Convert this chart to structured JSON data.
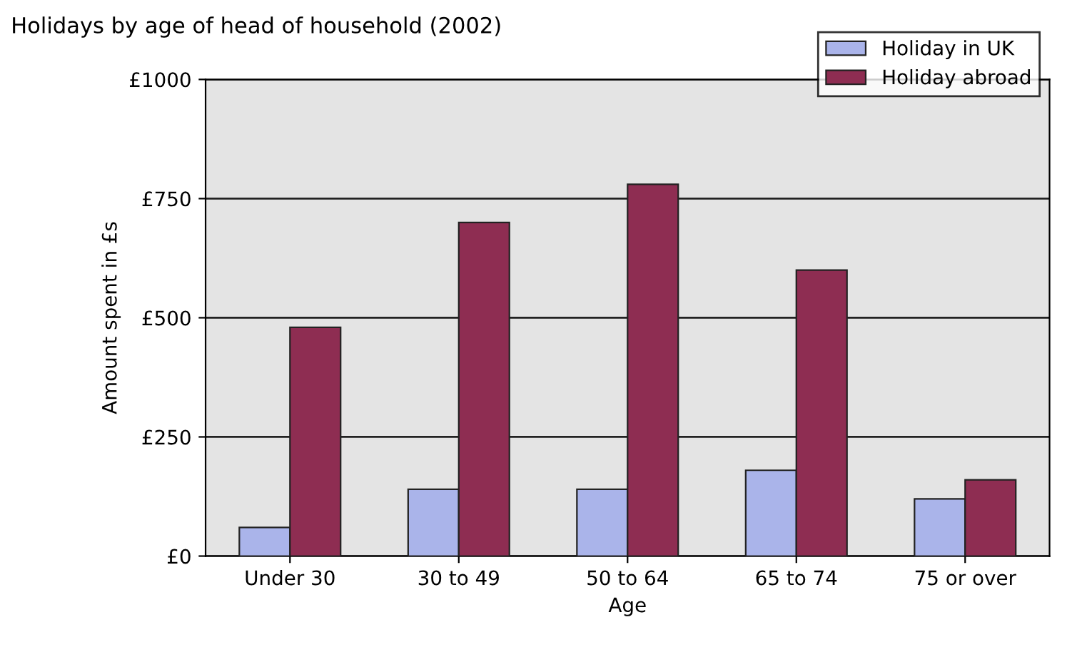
{
  "chart_data": {
    "type": "bar",
    "title": "Holidays by age of head of household (2002)",
    "xlabel": "Age",
    "ylabel": "Amount spent in £s",
    "categories": [
      "Under 30",
      "30 to 49",
      "50 to 64",
      "65 to 74",
      "75 or over"
    ],
    "series": [
      {
        "name": "Holiday in UK",
        "color": "#aab4ea",
        "values": [
          60,
          140,
          140,
          180,
          120
        ]
      },
      {
        "name": "Holiday abroad",
        "color": "#8e2d52",
        "values": [
          480,
          700,
          780,
          600,
          160
        ]
      }
    ],
    "ylim": [
      0,
      1000
    ],
    "yticks": [
      {
        "value": 0,
        "label": "£0"
      },
      {
        "value": 250,
        "label": "£250"
      },
      {
        "value": 500,
        "label": "£500"
      },
      {
        "value": 750,
        "label": "£750"
      },
      {
        "value": 1000,
        "label": "£1000"
      }
    ],
    "grid": "y",
    "legend": "top right"
  }
}
